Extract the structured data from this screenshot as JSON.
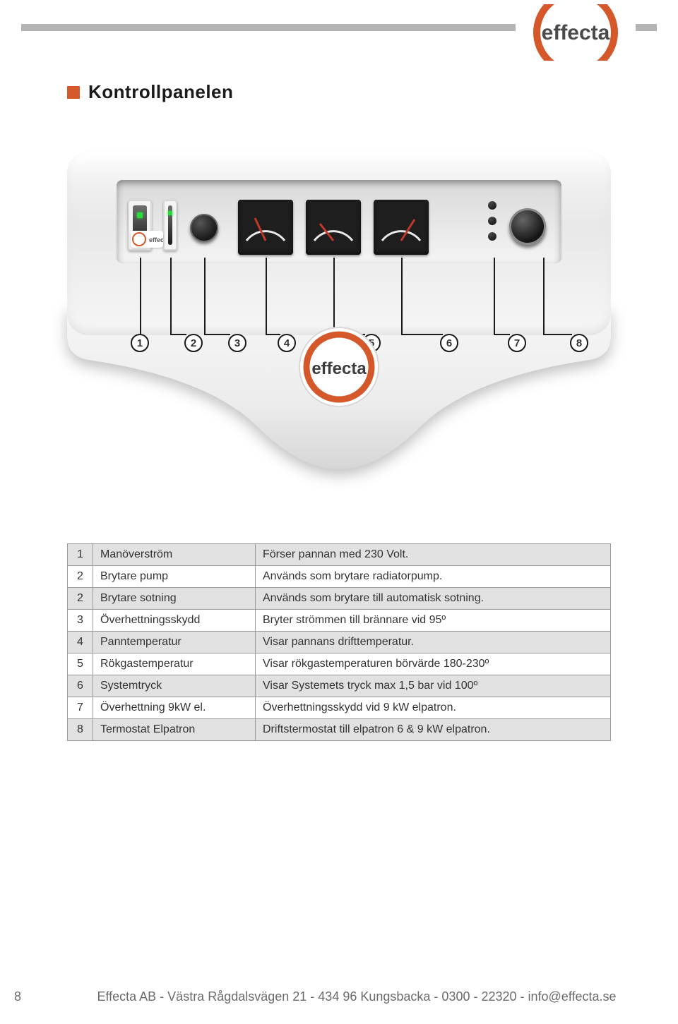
{
  "brand": "effecta",
  "accent_color": "#d4582a",
  "section_title": "Kontrollpanelen",
  "panel": {
    "numbers": [
      "1",
      "2",
      "3",
      "4",
      "5",
      "6",
      "7",
      "8"
    ],
    "gauge_needle_color": "#c0392b"
  },
  "table": {
    "rows": [
      {
        "n": "1",
        "name": "Manöverström",
        "desc": "Förser pannan med 230 Volt.",
        "shade": true
      },
      {
        "n": "2",
        "name": "Brytare pump",
        "desc": "Används som brytare radiatorpump.",
        "shade": false
      },
      {
        "n": "2",
        "name": "Brytare sotning",
        "desc": "Används som brytare till automatisk sotning.",
        "shade": true
      },
      {
        "n": "3",
        "name": "Överhettningsskydd",
        "desc": "Bryter strömmen till brännare vid 95º",
        "shade": false
      },
      {
        "n": "4",
        "name": "Panntemperatur",
        "desc": "Visar pannans drifttemperatur.",
        "shade": true
      },
      {
        "n": "5",
        "name": "Rökgastemperatur",
        "desc": "Visar rökgastemperaturen börvärde 180-230º",
        "shade": false
      },
      {
        "n": "6",
        "name": "Systemtryck",
        "desc": "Visar Systemets tryck max 1,5 bar vid 100º",
        "shade": true
      },
      {
        "n": "7",
        "name": "Överhettning 9kW el.",
        "desc": "Överhettningsskydd vid 9 kW elpatron.",
        "shade": false
      },
      {
        "n": "8",
        "name": "Termostat Elpatron",
        "desc": "Driftstermostat till elpatron 6 & 9 kW elpatron.",
        "shade": true
      }
    ]
  },
  "footer": {
    "page": "8",
    "text": "Effecta AB - Västra Rågdalsvägen 21 - 434 96 Kungsbacka - 0300 - 22320 - info@effecta.se"
  }
}
